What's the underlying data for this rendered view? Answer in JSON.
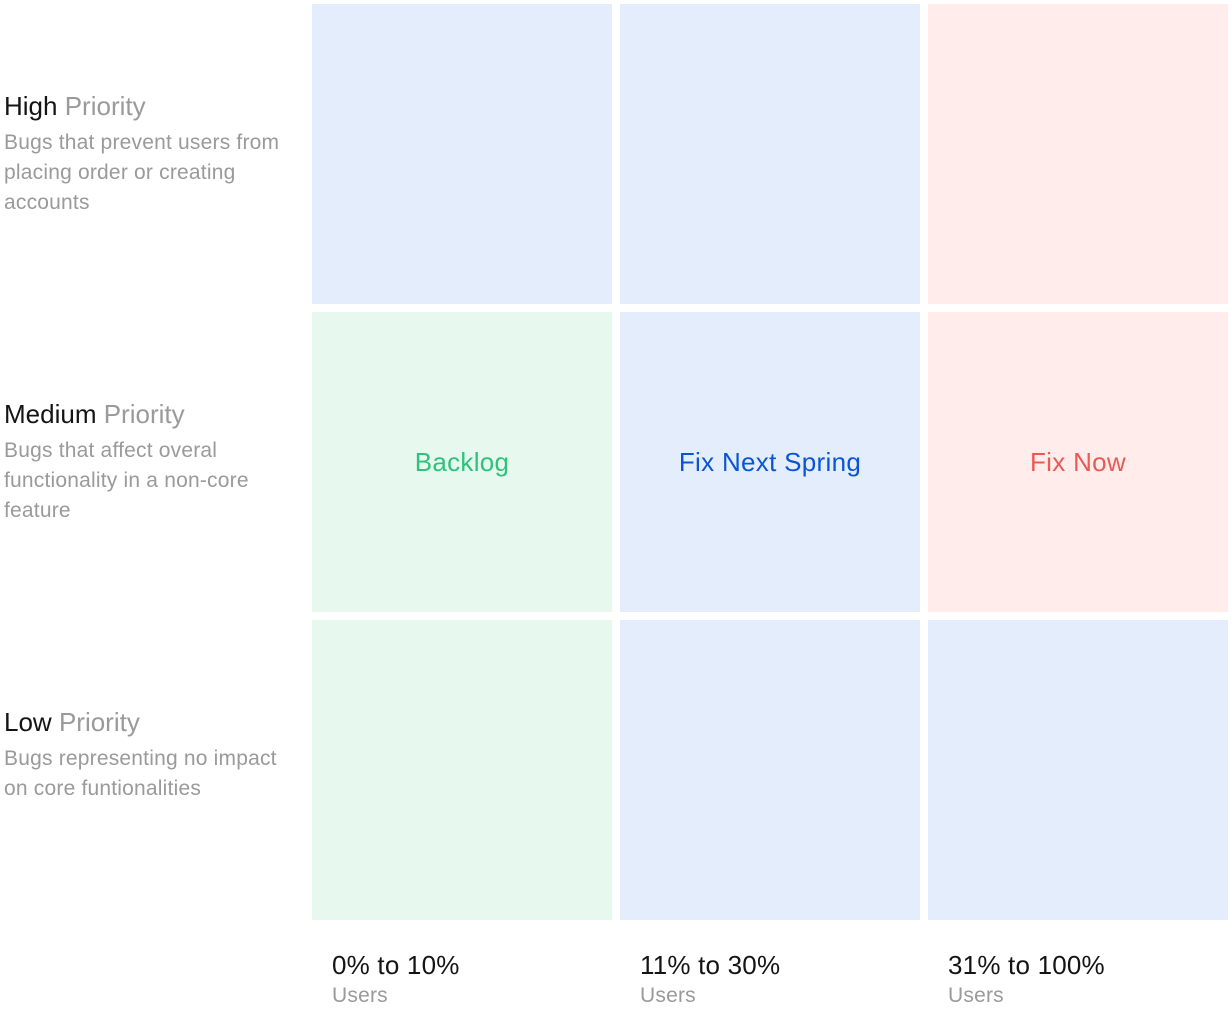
{
  "colors": {
    "green_fill": "#e7f8ee",
    "blue_fill": "#e3edfc",
    "red_fill": "#ffeceb",
    "green_text": "#2ec27a",
    "blue_text": "#0a55d6",
    "red_text": "#ea5a55"
  },
  "rows": [
    {
      "strong": "High",
      "muted": "Priority",
      "desc": "Bugs that prevent users from placing order or creating accounts"
    },
    {
      "strong": "Medium",
      "muted": "Priority",
      "desc": "Bugs that affect overal functionality in a non-core feature"
    },
    {
      "strong": "Low",
      "muted": "Priority",
      "desc": "Bugs representing no impact on core funtionalities"
    }
  ],
  "columns": [
    {
      "range": "0% to 10%",
      "unit": "Users"
    },
    {
      "range": "11% to 30%",
      "unit": "Users"
    },
    {
      "range": "31% to 100%",
      "unit": "Users"
    }
  ],
  "cells": {
    "backlog": "Backlog",
    "fix_next_spring": "Fix Next Spring",
    "fix_now": "Fix Now"
  }
}
